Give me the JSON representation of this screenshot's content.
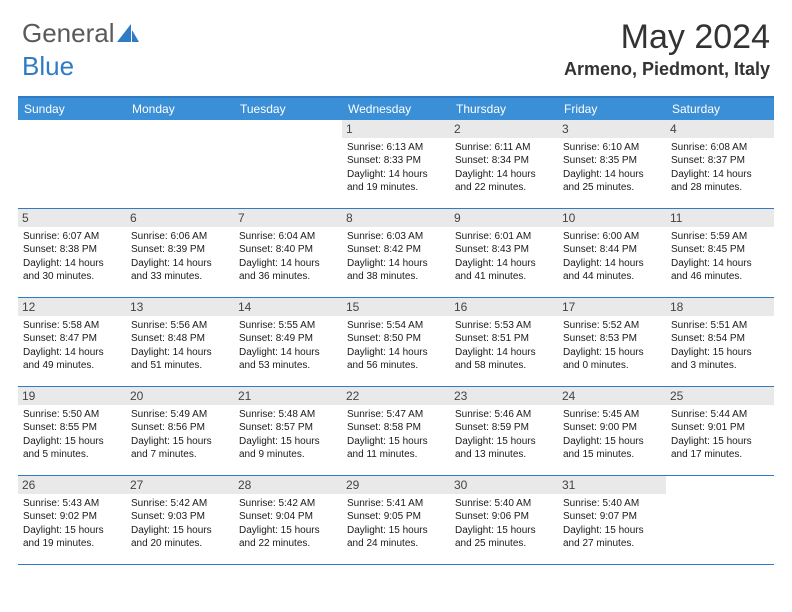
{
  "logo": {
    "text1": "General",
    "text2": "Blue"
  },
  "title": "May 2024",
  "location": "Armeno, Piedmont, Italy",
  "colors": {
    "header_bar": "#3b8fd6",
    "border": "#2f7cc4",
    "daynum_bg": "#e9e9e9",
    "logo_gray": "#5a5a5a",
    "logo_blue": "#2f7cc4"
  },
  "day_headers": [
    "Sunday",
    "Monday",
    "Tuesday",
    "Wednesday",
    "Thursday",
    "Friday",
    "Saturday"
  ],
  "weeks": [
    [
      {
        "empty": true
      },
      {
        "empty": true
      },
      {
        "empty": true
      },
      {
        "day": "1",
        "sunrise": "6:13 AM",
        "sunset": "8:33 PM",
        "daylight": "14 hours and 19 minutes."
      },
      {
        "day": "2",
        "sunrise": "6:11 AM",
        "sunset": "8:34 PM",
        "daylight": "14 hours and 22 minutes."
      },
      {
        "day": "3",
        "sunrise": "6:10 AM",
        "sunset": "8:35 PM",
        "daylight": "14 hours and 25 minutes."
      },
      {
        "day": "4",
        "sunrise": "6:08 AM",
        "sunset": "8:37 PM",
        "daylight": "14 hours and 28 minutes."
      }
    ],
    [
      {
        "day": "5",
        "sunrise": "6:07 AM",
        "sunset": "8:38 PM",
        "daylight": "14 hours and 30 minutes."
      },
      {
        "day": "6",
        "sunrise": "6:06 AM",
        "sunset": "8:39 PM",
        "daylight": "14 hours and 33 minutes."
      },
      {
        "day": "7",
        "sunrise": "6:04 AM",
        "sunset": "8:40 PM",
        "daylight": "14 hours and 36 minutes."
      },
      {
        "day": "8",
        "sunrise": "6:03 AM",
        "sunset": "8:42 PM",
        "daylight": "14 hours and 38 minutes."
      },
      {
        "day": "9",
        "sunrise": "6:01 AM",
        "sunset": "8:43 PM",
        "daylight": "14 hours and 41 minutes."
      },
      {
        "day": "10",
        "sunrise": "6:00 AM",
        "sunset": "8:44 PM",
        "daylight": "14 hours and 44 minutes."
      },
      {
        "day": "11",
        "sunrise": "5:59 AM",
        "sunset": "8:45 PM",
        "daylight": "14 hours and 46 minutes."
      }
    ],
    [
      {
        "day": "12",
        "sunrise": "5:58 AM",
        "sunset": "8:47 PM",
        "daylight": "14 hours and 49 minutes."
      },
      {
        "day": "13",
        "sunrise": "5:56 AM",
        "sunset": "8:48 PM",
        "daylight": "14 hours and 51 minutes."
      },
      {
        "day": "14",
        "sunrise": "5:55 AM",
        "sunset": "8:49 PM",
        "daylight": "14 hours and 53 minutes."
      },
      {
        "day": "15",
        "sunrise": "5:54 AM",
        "sunset": "8:50 PM",
        "daylight": "14 hours and 56 minutes."
      },
      {
        "day": "16",
        "sunrise": "5:53 AM",
        "sunset": "8:51 PM",
        "daylight": "14 hours and 58 minutes."
      },
      {
        "day": "17",
        "sunrise": "5:52 AM",
        "sunset": "8:53 PM",
        "daylight": "15 hours and 0 minutes."
      },
      {
        "day": "18",
        "sunrise": "5:51 AM",
        "sunset": "8:54 PM",
        "daylight": "15 hours and 3 minutes."
      }
    ],
    [
      {
        "day": "19",
        "sunrise": "5:50 AM",
        "sunset": "8:55 PM",
        "daylight": "15 hours and 5 minutes."
      },
      {
        "day": "20",
        "sunrise": "5:49 AM",
        "sunset": "8:56 PM",
        "daylight": "15 hours and 7 minutes."
      },
      {
        "day": "21",
        "sunrise": "5:48 AM",
        "sunset": "8:57 PM",
        "daylight": "15 hours and 9 minutes."
      },
      {
        "day": "22",
        "sunrise": "5:47 AM",
        "sunset": "8:58 PM",
        "daylight": "15 hours and 11 minutes."
      },
      {
        "day": "23",
        "sunrise": "5:46 AM",
        "sunset": "8:59 PM",
        "daylight": "15 hours and 13 minutes."
      },
      {
        "day": "24",
        "sunrise": "5:45 AM",
        "sunset": "9:00 PM",
        "daylight": "15 hours and 15 minutes."
      },
      {
        "day": "25",
        "sunrise": "5:44 AM",
        "sunset": "9:01 PM",
        "daylight": "15 hours and 17 minutes."
      }
    ],
    [
      {
        "day": "26",
        "sunrise": "5:43 AM",
        "sunset": "9:02 PM",
        "daylight": "15 hours and 19 minutes."
      },
      {
        "day": "27",
        "sunrise": "5:42 AM",
        "sunset": "9:03 PM",
        "daylight": "15 hours and 20 minutes."
      },
      {
        "day": "28",
        "sunrise": "5:42 AM",
        "sunset": "9:04 PM",
        "daylight": "15 hours and 22 minutes."
      },
      {
        "day": "29",
        "sunrise": "5:41 AM",
        "sunset": "9:05 PM",
        "daylight": "15 hours and 24 minutes."
      },
      {
        "day": "30",
        "sunrise": "5:40 AM",
        "sunset": "9:06 PM",
        "daylight": "15 hours and 25 minutes."
      },
      {
        "day": "31",
        "sunrise": "5:40 AM",
        "sunset": "9:07 PM",
        "daylight": "15 hours and 27 minutes."
      },
      {
        "empty": true
      }
    ]
  ],
  "labels": {
    "sunrise": "Sunrise: ",
    "sunset": "Sunset: ",
    "daylight": "Daylight: "
  }
}
